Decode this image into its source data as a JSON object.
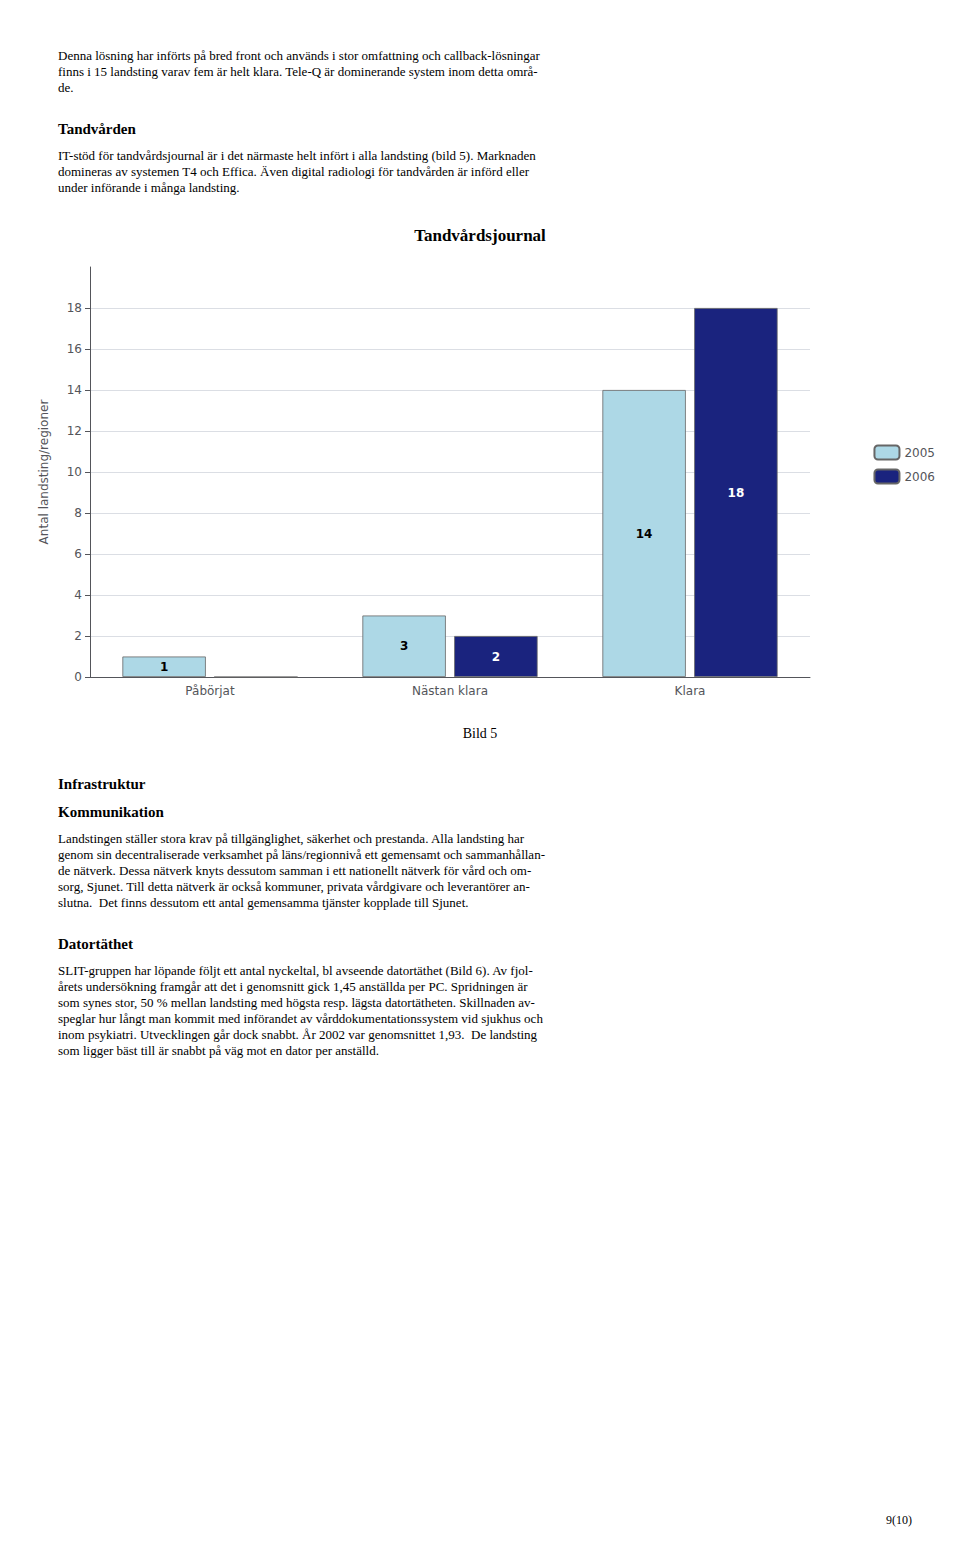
{
  "chart_data": {
    "type": "bar",
    "title": "Tandvårdsjournal",
    "categories": [
      "Påbörjat",
      "Nästan klara",
      "Klara"
    ],
    "series": [
      {
        "name": "2005",
        "color": "#ADD8E6",
        "values": [
          1,
          3,
          14
        ]
      },
      {
        "name": "2006",
        "color": "#1A237E",
        "values": [
          0,
          2,
          18
        ]
      }
    ],
    "ylabel": "Antal landsting/regioner",
    "ylim": [
      0,
      20
    ],
    "yticks": [
      0,
      2,
      4,
      6,
      8,
      10,
      12,
      14,
      16,
      18
    ],
    "grid": true,
    "legend": "right",
    "data_labels": true,
    "caption": "Bild 5"
  },
  "text_above": [
    {
      "paragraph": "Denna lösning har införts på bred front och används i stor omfattning och callback-lösningar\nfinns i 15 landsting varav fem är helt klara. Tele-Q är dominerande system inom detta områ-\nde."
    },
    {
      "heading": "Tandvården"
    },
    {
      "paragraph": "IT-stöd för tandvårdsjournal är i det närmaste helt infört i alla landsting (bild 5). Marknaden\ndomineras av systemen T4 och Effica. Även digital radiologi för tandvården är införd eller\nunder införande i många landsting."
    }
  ],
  "text_below": [
    {
      "heading": "Infrastruktur"
    },
    {
      "heading": "Kommunikation"
    },
    {
      "paragraph": "Landstingen ställer stora krav på tillgänglighet, säkerhet och prestanda. Alla landsting har\ngenom sin decentraliserade verksamhet på läns/regionnivå ett gemensamt och sammanhållan-\nde nätverk. Dessa nätverk knyts dessutom samman i ett nationellt nätverk för vård och om-\nsorg, Sjunet. Till detta nätverk är också kommuner, privata vårdgivare och leverantörer an-\nslutna.  Det finns dessutom ett antal gemensamma tjänster kopplade till Sjunet."
    },
    {
      "heading": "Datortäthet"
    },
    {
      "paragraph": "SLIT-gruppen har löpande följt ett antal nyckeltal, bl avseende datortäthet (Bild 6). Av fjol-\nårets undersökning framgår att det i genomsnitt gick 1,45 anställda per PC. Spridningen är\nsom synes stor, 50 % mellan landsting med högsta resp. lägsta datortätheten. Skillnaden av-\nspeglar hur långt man kommit med införandet av vårddokumentationssystem vid sjukhus och\ninom psykiatri. Utvecklingen går dock snabbt. År 2002 var genomsnittet 1,93.  De landsting\nsom ligger bäst till är snabbt på väg mot en dator per anställd."
    }
  ],
  "page_number": "9(10)"
}
